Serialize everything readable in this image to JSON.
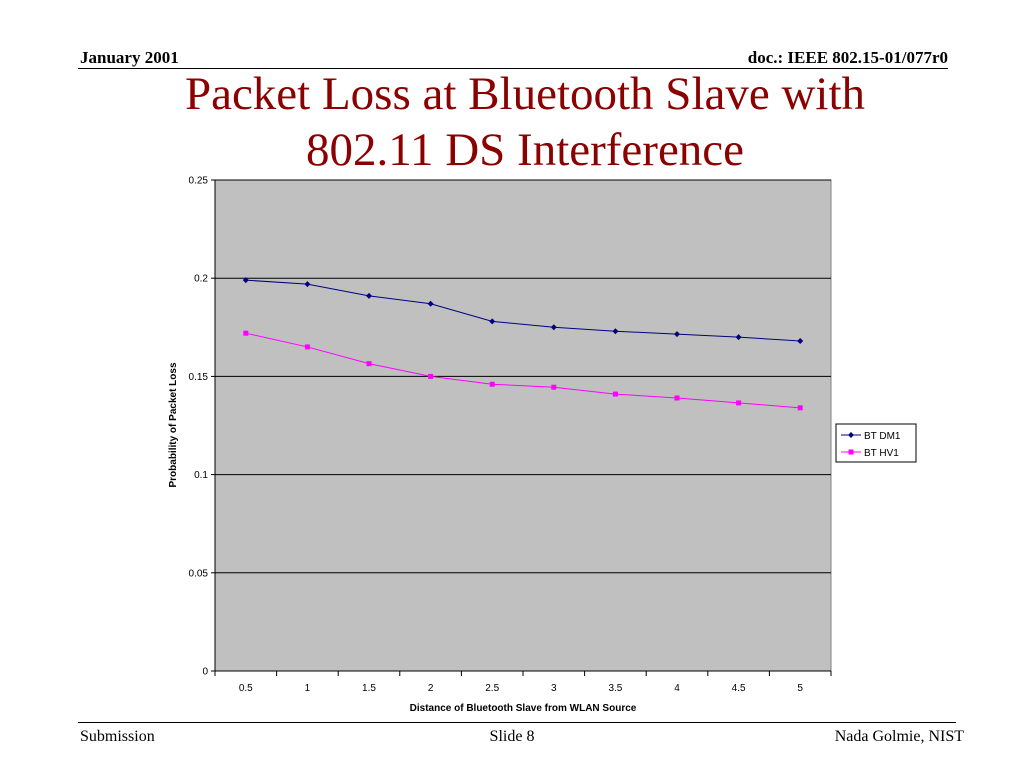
{
  "header": {
    "left": "January 2001",
    "right": "doc.: IEEE 802.15-01/077r0"
  },
  "title": {
    "line1": "Packet Loss at Bluetooth Slave with",
    "line2": "802.11 DS Interference"
  },
  "footer": {
    "left": "Submission",
    "center": "Slide 8",
    "right": "Nada Golmie, NIST"
  },
  "colors": {
    "title": "#8b0000",
    "plot_bg": "#c0c0c0",
    "series_dm1": "#000080",
    "series_hv1": "#ff00ff"
  },
  "chart_data": {
    "type": "line",
    "x": [
      0.5,
      1,
      1.5,
      2,
      2.5,
      3,
      3.5,
      4,
      4.5,
      5
    ],
    "x_tick_labels": [
      "0.5",
      "1",
      "1.5",
      "2",
      "2.5",
      "3",
      "3.5",
      "4",
      "4.5",
      "5"
    ],
    "series": [
      {
        "name": "BT DM1",
        "color": "#000080",
        "marker": "diamond",
        "values": [
          0.199,
          0.197,
          0.191,
          0.187,
          0.178,
          0.175,
          0.173,
          0.1715,
          0.17,
          0.168
        ]
      },
      {
        "name": "BT HV1",
        "color": "#ff00ff",
        "marker": "square",
        "values": [
          0.172,
          0.165,
          0.1565,
          0.15,
          0.146,
          0.1445,
          0.141,
          0.139,
          0.1365,
          0.134
        ]
      }
    ],
    "xlabel": "Distance of Bluetooth Slave from WLAN Source",
    "ylabel": "Probability of Packet Loss",
    "ylim": [
      0,
      0.25
    ],
    "y_ticks": [
      0,
      0.05,
      0.1,
      0.15,
      0.2,
      0.25
    ],
    "y_tick_labels": [
      "0",
      "0.05",
      "0.1",
      "0.15",
      "0.2",
      "0.25"
    ],
    "grid": "horizontal",
    "legend_position": "right"
  }
}
